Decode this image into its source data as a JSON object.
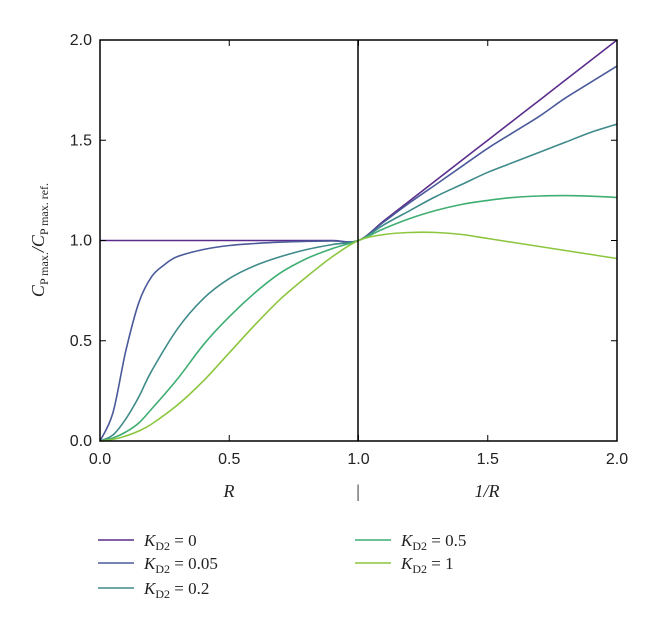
{
  "chart_data": {
    "type": "line",
    "ylabel": {
      "main": "C",
      "sub1": "P max.",
      "mid": "/C",
      "sub2": "P max. ref."
    },
    "ylim": [
      0,
      2.0
    ],
    "yticks": [
      "0.0",
      "0.5",
      "1.0",
      "1.5",
      "2.0"
    ],
    "left_xlabel": "R",
    "right_xlabel": "1/R",
    "middle_marker": "|",
    "xticks": [
      "0.0",
      "0.5",
      "1.0",
      "1.5",
      "2.0"
    ],
    "xlim": [
      0,
      2.0
    ],
    "grid": false,
    "legend_placement": "bottom",
    "legend_prefix": "K",
    "legend_subscript": "D2",
    "series": [
      {
        "name": "K_D2 = 0",
        "value_label": "= 0",
        "color": "#5a2d8c"
      },
      {
        "name": "K_D2 = 0.05",
        "value_label": "= 0.05",
        "color": "#4a5a9a"
      },
      {
        "name": "K_D2 = 0.2",
        "value_label": "= 0.2",
        "color": "#3f8a8a"
      },
      {
        "name": "K_D2 = 0.5",
        "value_label": "= 0.5",
        "color": "#3fae72"
      },
      {
        "name": "K_D2 = 1",
        "value_label": "= 1",
        "color": "#8cc63f"
      }
    ],
    "series_points": [
      {
        "x": [
          0,
          0.05,
          0.1,
          0.2,
          0.3,
          0.4,
          0.5,
          0.6,
          0.7,
          0.8,
          0.9,
          1.0,
          1.1,
          1.2,
          1.3,
          1.4,
          1.5,
          1.6,
          1.7,
          1.8,
          1.9,
          2.0
        ],
        "y": [
          1.0,
          1.0,
          1.0,
          1.0,
          1.0,
          1.0,
          1.0,
          1.0,
          1.0,
          1.0,
          1.0,
          1.0,
          1.1,
          1.2,
          1.3,
          1.4,
          1.5,
          1.6,
          1.7,
          1.8,
          1.9,
          2.0
        ]
      },
      {
        "x": [
          0,
          0.05,
          0.1,
          0.15,
          0.2,
          0.25,
          0.3,
          0.4,
          0.5,
          0.6,
          0.7,
          0.8,
          0.9,
          1.0,
          1.1,
          1.2,
          1.3,
          1.4,
          1.5,
          1.6,
          1.7,
          1.8,
          1.9,
          2.0
        ],
        "y": [
          0.0,
          0.14,
          0.45,
          0.69,
          0.82,
          0.88,
          0.92,
          0.955,
          0.975,
          0.985,
          0.992,
          0.996,
          0.998,
          1.0,
          1.095,
          1.19,
          1.28,
          1.37,
          1.46,
          1.54,
          1.62,
          1.71,
          1.79,
          1.87
        ]
      },
      {
        "x": [
          0,
          0.05,
          0.1,
          0.15,
          0.2,
          0.3,
          0.4,
          0.5,
          0.6,
          0.7,
          0.8,
          0.9,
          1.0,
          1.1,
          1.2,
          1.3,
          1.4,
          1.5,
          1.6,
          1.7,
          1.8,
          1.9,
          2.0
        ],
        "y": [
          0.0,
          0.03,
          0.11,
          0.22,
          0.35,
          0.56,
          0.71,
          0.81,
          0.875,
          0.92,
          0.955,
          0.98,
          1.0,
          1.08,
          1.15,
          1.22,
          1.28,
          1.34,
          1.39,
          1.44,
          1.49,
          1.54,
          1.58
        ]
      },
      {
        "x": [
          0,
          0.05,
          0.1,
          0.15,
          0.2,
          0.3,
          0.4,
          0.5,
          0.6,
          0.7,
          0.8,
          0.9,
          1.0,
          1.1,
          1.2,
          1.3,
          1.4,
          1.5,
          1.6,
          1.7,
          1.8,
          1.9,
          2.0
        ],
        "y": [
          0.0,
          0.015,
          0.045,
          0.09,
          0.16,
          0.31,
          0.48,
          0.62,
          0.74,
          0.84,
          0.91,
          0.96,
          1.0,
          1.06,
          1.11,
          1.15,
          1.18,
          1.2,
          1.215,
          1.222,
          1.224,
          1.221,
          1.215
        ]
      },
      {
        "x": [
          0,
          0.05,
          0.1,
          0.15,
          0.2,
          0.3,
          0.4,
          0.5,
          0.6,
          0.7,
          0.8,
          0.9,
          1.0,
          1.1,
          1.2,
          1.3,
          1.4,
          1.5,
          1.6,
          1.7,
          1.8,
          1.9,
          2.0
        ],
        "y": [
          0.0,
          0.008,
          0.025,
          0.05,
          0.085,
          0.18,
          0.3,
          0.44,
          0.58,
          0.71,
          0.82,
          0.92,
          1.0,
          1.03,
          1.04,
          1.04,
          1.03,
          1.01,
          0.99,
          0.97,
          0.95,
          0.93,
          0.91
        ]
      }
    ]
  }
}
